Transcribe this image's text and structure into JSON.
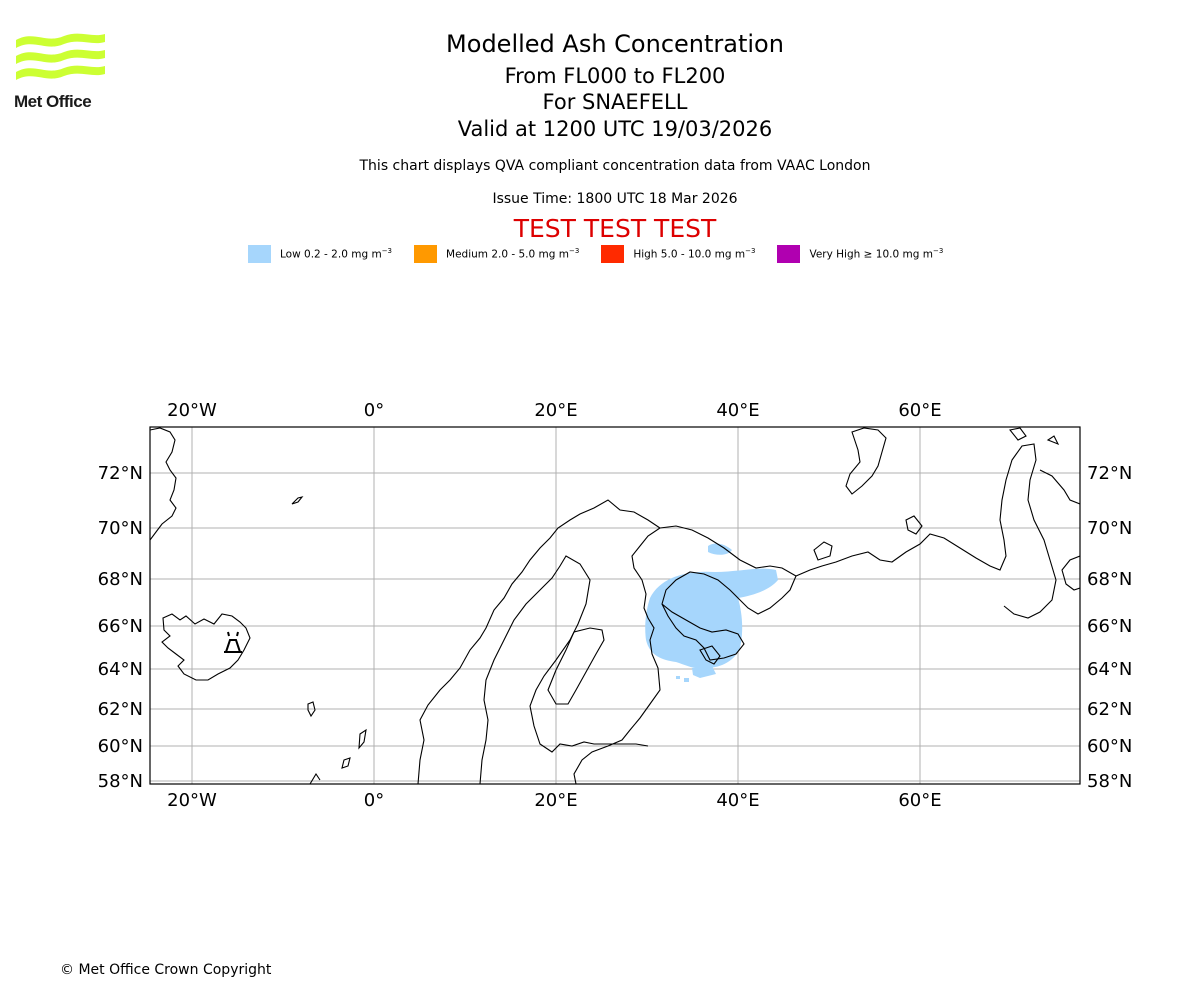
{
  "header": {
    "title": "Modelled Ash Concentration",
    "level_range": "From FL000 to FL200",
    "volcano": "For SNAEFELL",
    "valid_time": "Valid at 1200 UTC 19/03/2026",
    "description": "This chart displays QVA compliant concentration data from VAAC London",
    "issue_time": "Issue Time: 1800 UTC 18 Mar 2026",
    "test_banner": "TEST TEST TEST"
  },
  "logo": {
    "text": "Met Office",
    "color": "#ccff33"
  },
  "legend": [
    {
      "label": "Low 0.2 - 2.0 mg m",
      "color": "#a6d6fc"
    },
    {
      "label": "Medium 2.0 - 5.0 mg m",
      "color": "#ff9900"
    },
    {
      "label": "High 5.0 - 10.0 mg m",
      "color": "#ff2a00"
    },
    {
      "label": "Very High ≥ 10.0 mg m",
      "color": "#b000b0"
    }
  ],
  "legend_unit_exponent": "−3",
  "map": {
    "lon_labels": [
      "20°W",
      "0°",
      "20°E",
      "40°E",
      "60°E"
    ],
    "lat_labels": [
      "72°N",
      "70°N",
      "68°N",
      "66°N",
      "64°N",
      "62°N",
      "60°N",
      "58°N"
    ],
    "gridlines": true,
    "ash_level_present": "Low",
    "volcano_marker": "volcano-icon"
  },
  "footer": {
    "copyright": "© Met Office Crown Copyright"
  }
}
